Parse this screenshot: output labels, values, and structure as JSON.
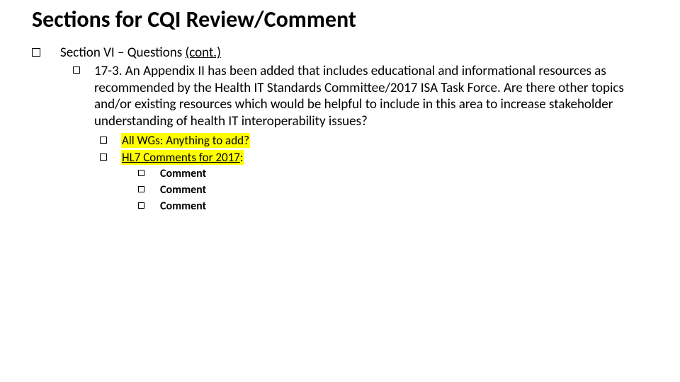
{
  "colors": {
    "background": "#ffffff",
    "text": "#000000",
    "highlight": "#ffff00",
    "bullet_border": "#000000"
  },
  "typography": {
    "title_fontsize": 32,
    "title_weight": 700,
    "lvl0_fontsize": 19,
    "lvl1_fontsize": 19,
    "lvl2_fontsize": 17,
    "lvl3_fontsize": 16,
    "font_family": "Calibri"
  },
  "title": "Sections for CQI Review/Comment",
  "lvl0": {
    "prefix": "Section VI – Questions ",
    "cont": "(cont.)"
  },
  "lvl1": {
    "item1": "17-3. An Appendix II has been added that includes educational and informational resources as recommended by the Health IT Standards Committee/2017 ISA Task Force. Are there other topics and/or existing resources which would be helpful to include in this area to increase stakeholder understanding of health IT interoperability issues?"
  },
  "lvl2": {
    "item1": "All WGs: Anything to add?",
    "item2_prefix": "HL7 Comments for 2017",
    "item2_suffix": ":"
  },
  "lvl3": {
    "item1": "Comment",
    "item2": "Comment",
    "item3": "Comment"
  }
}
